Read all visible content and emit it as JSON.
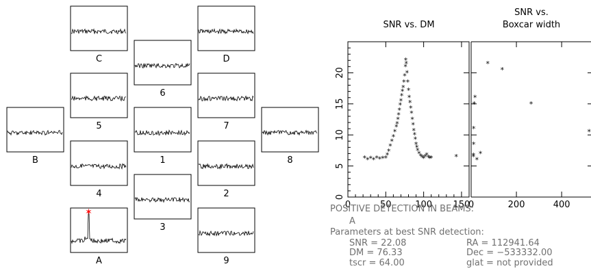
{
  "beams": [
    {
      "id": "C",
      "label": "C",
      "spike": false
    },
    {
      "id": "D",
      "label": "D",
      "spike": false
    },
    {
      "id": "6",
      "label": "6",
      "spike": false
    },
    {
      "id": "5",
      "label": "5",
      "spike": false
    },
    {
      "id": "7",
      "label": "7",
      "spike": false
    },
    {
      "id": "B",
      "label": "B",
      "spike": false
    },
    {
      "id": "1",
      "label": "1",
      "spike": false
    },
    {
      "id": "8",
      "label": "8",
      "spike": false
    },
    {
      "id": "4",
      "label": "4",
      "spike": false
    },
    {
      "id": "2",
      "label": "2",
      "spike": false
    },
    {
      "id": "3",
      "label": "3",
      "spike": false
    },
    {
      "id": "A",
      "label": "A",
      "spike": true
    },
    {
      "id": "9",
      "label": "9",
      "spike": false
    }
  ],
  "colors": {
    "axis": "#000000",
    "trace": "#000000",
    "marker": "#ff0000",
    "text": "#707070"
  },
  "chart_data": [
    {
      "type": "scatter",
      "title": "SNR vs. DM",
      "xlabel": "",
      "ylabel": "",
      "xlim": [
        0,
        160
      ],
      "ylim": [
        0,
        25
      ],
      "xticks": [
        0,
        50,
        100,
        150
      ],
      "yticks": [
        0,
        5,
        10,
        15,
        20
      ],
      "grid": false,
      "series": [
        {
          "x": [
            22,
            26,
            30,
            34,
            38,
            42,
            46,
            50,
            52,
            54,
            56,
            58,
            60,
            62,
            64,
            65,
            66,
            67,
            68,
            69,
            70,
            71,
            72,
            73,
            74,
            75,
            76,
            76.3,
            77,
            78,
            79,
            80,
            81,
            82,
            83,
            84,
            85,
            86,
            87,
            88,
            89,
            90,
            91,
            92,
            94,
            96,
            98,
            100,
            102,
            104,
            106,
            108,
            110,
            143
          ],
          "y": [
            6.3,
            6,
            6.2,
            6,
            6.3,
            6.1,
            6.2,
            6.3,
            6.8,
            7.4,
            8.2,
            9,
            9.7,
            10.5,
            11.3,
            11.8,
            12.5,
            13.2,
            14,
            14.8,
            15.5,
            16.3,
            17,
            17.6,
            18.5,
            19.5,
            21,
            22,
            21.5,
            20,
            18.5,
            17.2,
            16,
            15.2,
            14.3,
            13.5,
            12.5,
            11.6,
            10.7,
            10,
            9.3,
            8.5,
            8,
            7.5,
            7,
            6.6,
            6.4,
            6.2,
            6.5,
            6.8,
            6.4,
            6.2,
            6.3,
            6.5
          ]
        }
      ]
    },
    {
      "type": "scatter",
      "title": "SNR vs.\nBoxcar width",
      "title_lines": [
        "SNR vs.",
        "Boxcar width"
      ],
      "xlabel": "",
      "ylabel": "",
      "xlim": [
        0,
        560
      ],
      "ylim": [
        0,
        25
      ],
      "xticks": [
        0,
        200,
        400
      ],
      "grid": false,
      "series": [
        {
          "x": [
            1,
            1,
            2,
            2,
            4,
            8,
            16,
            32,
            64,
            128,
            256,
            512
          ],
          "y": [
            6.5,
            6.7,
            8.5,
            11,
            15,
            16,
            6,
            7,
            21.5,
            20.5,
            15,
            10.5
          ]
        }
      ]
    }
  ],
  "info": {
    "detection_header": "POSITIVE DETECTION IN BEAMS:",
    "detection_beams": "A",
    "params_header": "Parameters at best SNR detection:",
    "snr": "SNR = 22.08",
    "dm": "DM = 76.33",
    "tscr": "tscr = 64.00",
    "ra": "RA = 112941.64",
    "dec": "Dec = −533332.00",
    "glat": "glat = not provided"
  }
}
